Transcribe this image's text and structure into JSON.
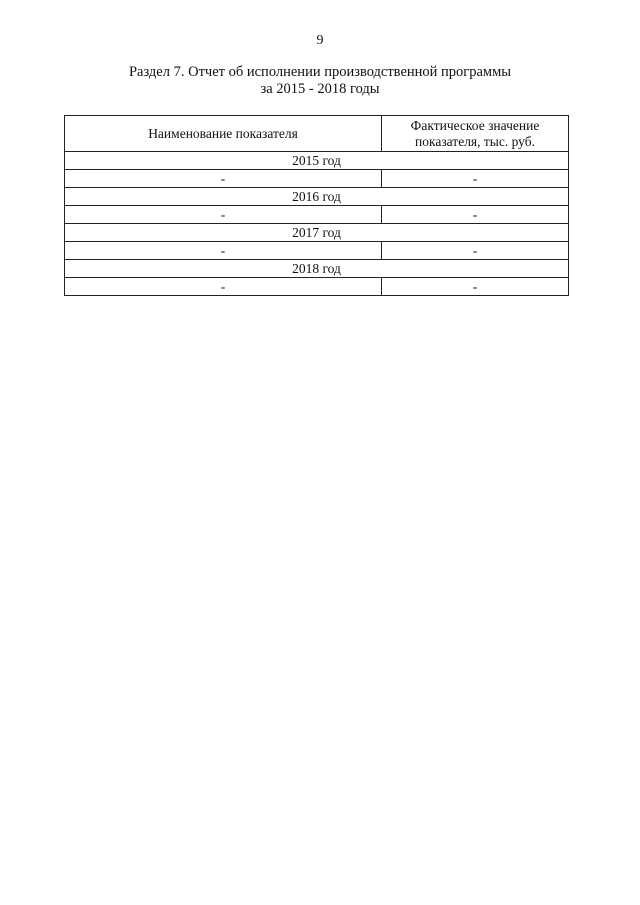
{
  "page_number": "9",
  "title_line1": "Раздел 7. Отчет об исполнении производственной программы",
  "title_line2": "за 2015 - 2018 годы",
  "table": {
    "headers": [
      "Наименование показателя",
      "Фактическое значение показателя, тыс. руб."
    ],
    "sections": [
      {
        "year": "2015 год",
        "rows": [
          [
            "-",
            "-"
          ]
        ]
      },
      {
        "year": "2016 год",
        "rows": [
          [
            "-",
            "-"
          ]
        ]
      },
      {
        "year": "2017 год",
        "rows": [
          [
            "-",
            "-"
          ]
        ]
      },
      {
        "year": "2018 год",
        "rows": [
          [
            "-",
            "-"
          ]
        ]
      }
    ]
  }
}
